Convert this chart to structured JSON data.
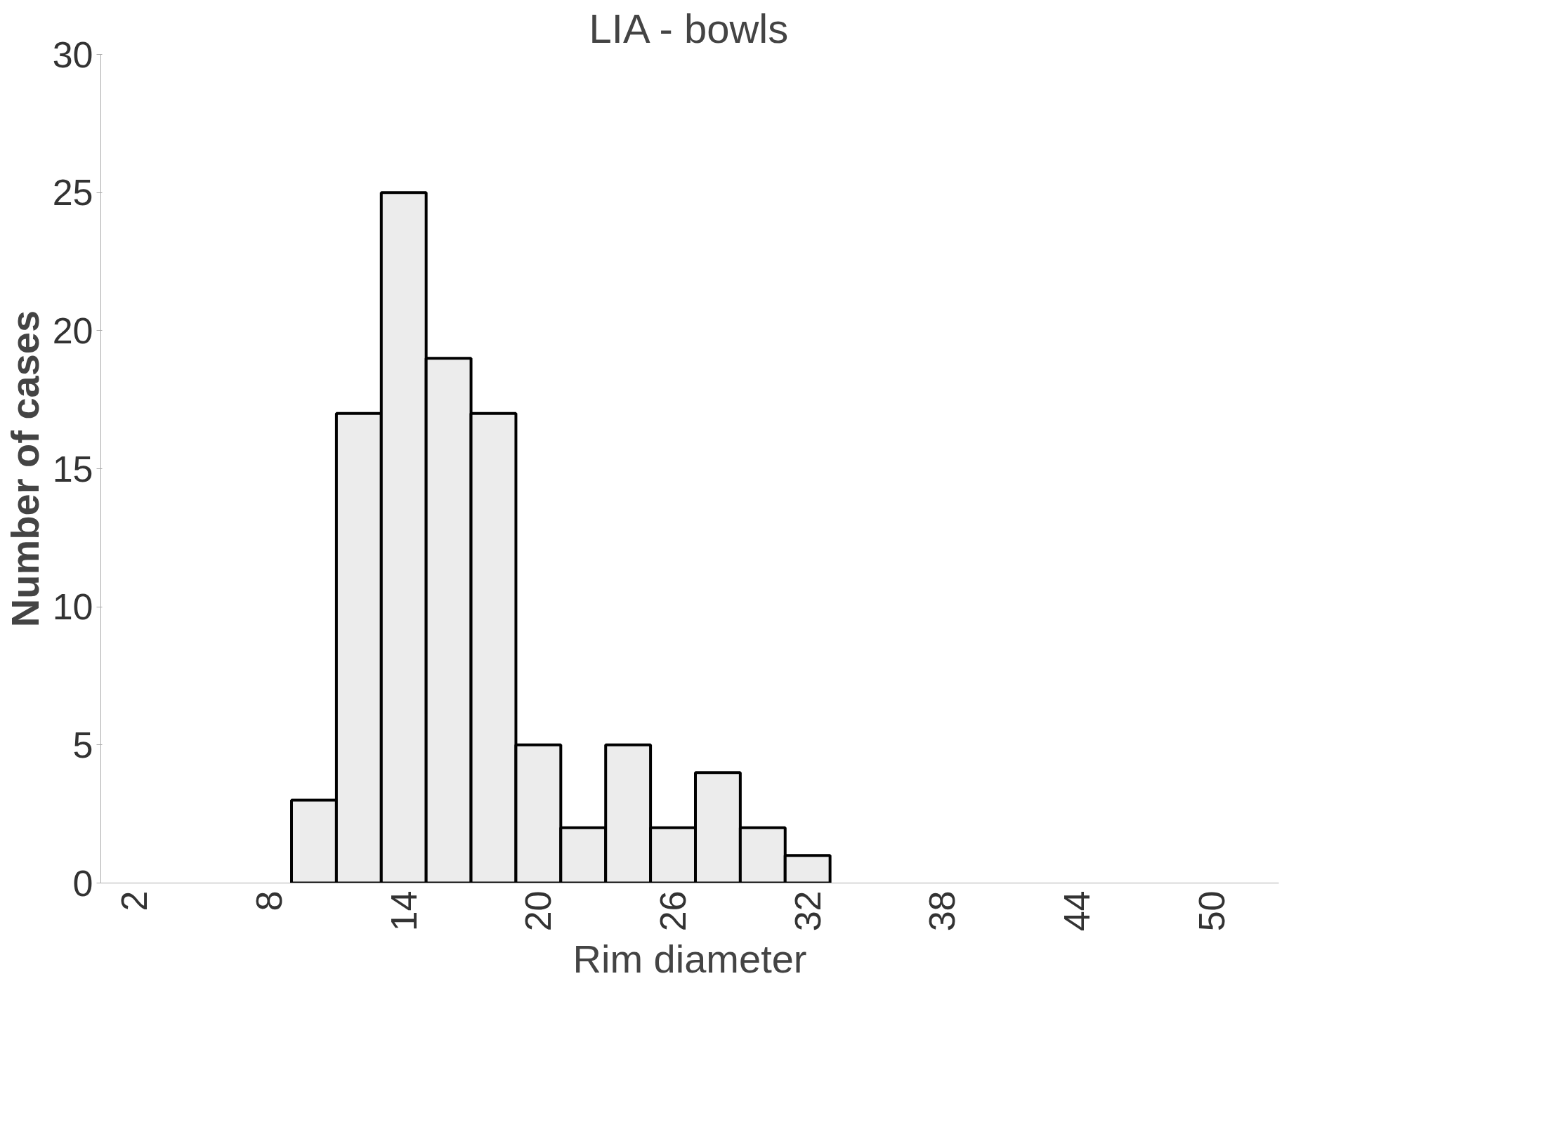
{
  "chart_data": {
    "type": "histogram",
    "title": "LIA - bowls",
    "xlabel": "Rim diameter",
    "ylabel": "Number of cases",
    "bins": [
      9,
      11,
      13,
      15,
      17,
      19,
      21,
      23,
      25,
      27,
      29,
      31,
      33
    ],
    "values": [
      3,
      17,
      25,
      19,
      17,
      5,
      2,
      5,
      2,
      4,
      2,
      1
    ],
    "color": "#ececec",
    "xlim": [
      0.5,
      53
    ],
    "xticks": [
      2,
      8,
      14,
      20,
      26,
      32,
      38,
      44,
      50
    ],
    "ylim": [
      0,
      30
    ],
    "yticks": [
      0,
      5,
      10,
      15,
      20,
      25,
      30
    ],
    "grid": false
  }
}
